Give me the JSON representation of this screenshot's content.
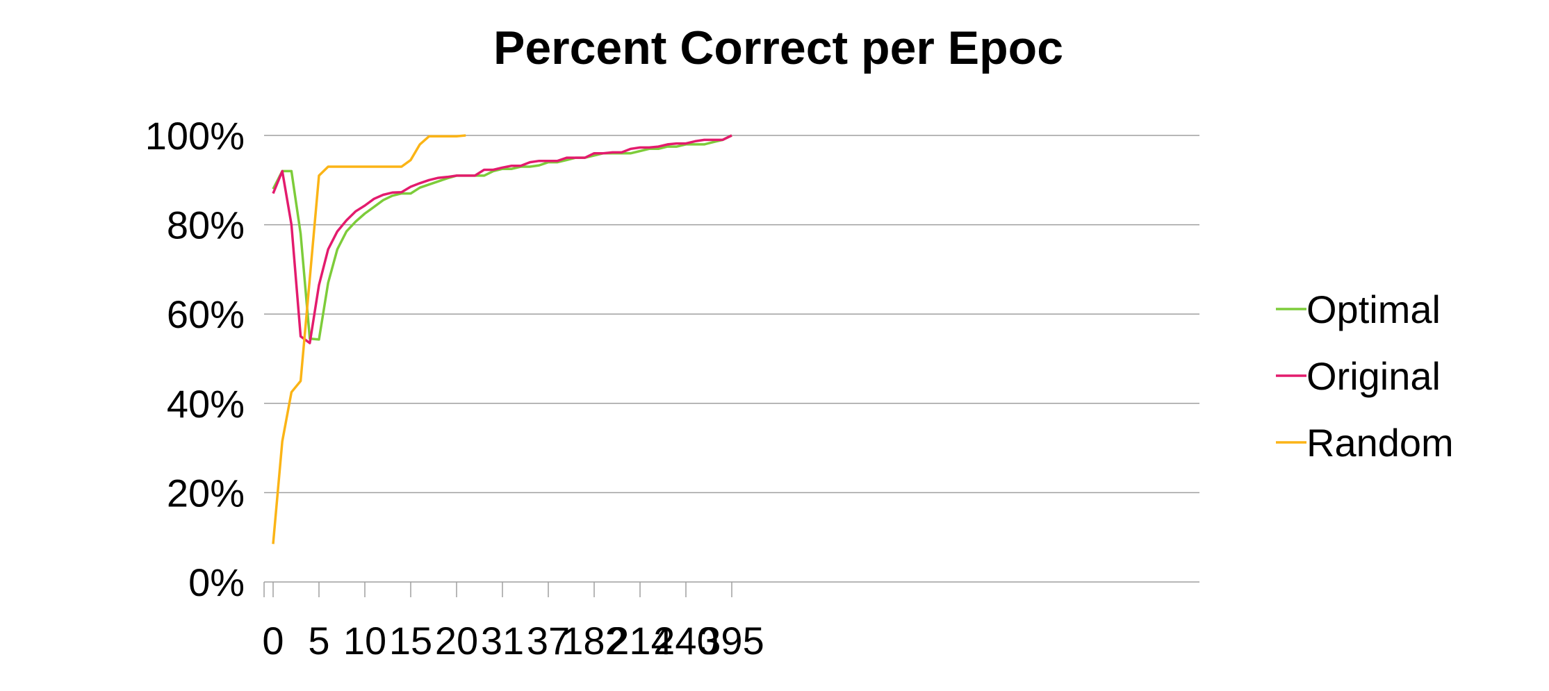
{
  "chart_data": {
    "type": "line",
    "title": "Percent Correct per Epoc",
    "xlabel": "",
    "ylabel": "",
    "ylim": [
      0,
      100
    ],
    "y_ticks": [
      "0%",
      "20%",
      "40%",
      "60%",
      "80%",
      "100%"
    ],
    "x_tick_labels": [
      "0",
      "5",
      "10",
      "15",
      "20",
      "31",
      "37",
      "182",
      "214",
      "240",
      "395"
    ],
    "grid": true,
    "legend_position": "right",
    "num_points": 51,
    "series": [
      {
        "name": "Optimal",
        "color": "#7dcc3a",
        "values": [
          88,
          92,
          92,
          78,
          54.5,
          54.3,
          67,
          74.5,
          78.5,
          80.7,
          82.5,
          84,
          85.5,
          86.5,
          87,
          87,
          88.3,
          89,
          89.7,
          90.4,
          91,
          91,
          91,
          91,
          92,
          92.5,
          92.5,
          93,
          93,
          93.3,
          94,
          94,
          94.5,
          95,
          95,
          95.5,
          96,
          96,
          96,
          96,
          96.5,
          97,
          97,
          97.5,
          97.5,
          98,
          98,
          98,
          98.5,
          99,
          100
        ]
      },
      {
        "name": "Original",
        "color": "#e31b6d",
        "values": [
          87,
          92,
          80,
          55,
          53.5,
          66.5,
          74.5,
          78.5,
          81,
          83,
          84.3,
          85.8,
          86.7,
          87.2,
          87.3,
          88.5,
          89.3,
          90,
          90.5,
          90.7,
          91,
          91,
          91,
          92.3,
          92.3,
          92.8,
          93.2,
          93.2,
          94,
          94.3,
          94.3,
          94.3,
          95,
          95,
          95,
          96,
          96,
          96.2,
          96.2,
          97,
          97.3,
          97.3,
          97.5,
          98,
          98.2,
          98.2,
          98.7,
          99,
          99,
          99,
          100
        ]
      },
      {
        "name": "Random",
        "color": "#fbb416",
        "values": [
          8.5,
          31.5,
          42.5,
          45,
          68,
          91,
          93,
          93,
          93,
          93,
          93,
          93,
          93,
          93,
          93,
          94.5,
          98,
          99.8,
          99.8,
          99.8,
          99.8,
          100
        ]
      }
    ]
  }
}
